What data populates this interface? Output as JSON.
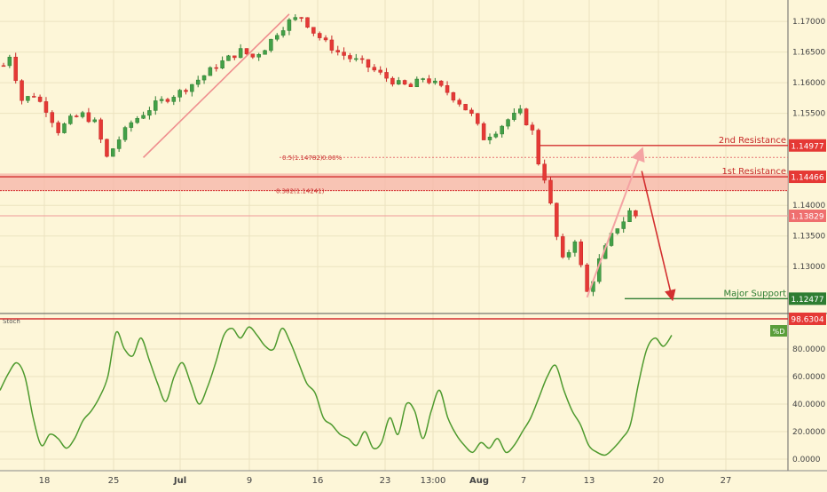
{
  "chart_data": [
    {
      "type": "candlestick",
      "title": "",
      "xlabel": "",
      "ylabel": "",
      "ylim": [
        1.1225,
        1.1735
      ],
      "grid": true,
      "x_ticks": [
        "18",
        "25",
        "Jul",
        "9",
        "16",
        "23",
        "13:00",
        "Aug",
        "7",
        "13",
        "20",
        "27"
      ],
      "y_ticks": [
        "1.17000",
        "1.16500",
        "1.16000",
        "1.15500",
        "1.14000",
        "1.13500",
        "1.13000"
      ],
      "price_anchors": [
        [
          0,
          1.1628
        ],
        [
          1,
          1.1645
        ],
        [
          3,
          1.1572
        ],
        [
          5,
          1.158
        ],
        [
          7,
          1.1557
        ],
        [
          9,
          1.1522
        ],
        [
          11,
          1.154
        ],
        [
          13,
          1.1548
        ],
        [
          15,
          1.1535
        ],
        [
          17,
          1.1478
        ],
        [
          19,
          1.1508
        ],
        [
          21,
          1.1535
        ],
        [
          23,
          1.155
        ],
        [
          25,
          1.1565
        ],
        [
          27,
          1.1575
        ],
        [
          29,
          1.1585
        ],
        [
          31,
          1.1598
        ],
        [
          33,
          1.1612
        ],
        [
          35,
          1.1628
        ],
        [
          37,
          1.164
        ],
        [
          39,
          1.1652
        ],
        [
          41,
          1.1642
        ],
        [
          43,
          1.1657
        ],
        [
          45,
          1.1682
        ],
        [
          47,
          1.17
        ],
        [
          49,
          1.1708
        ],
        [
          51,
          1.1683
        ],
        [
          53,
          1.1665
        ],
        [
          55,
          1.165
        ],
        [
          57,
          1.164
        ],
        [
          59,
          1.1632
        ],
        [
          61,
          1.162
        ],
        [
          63,
          1.1608
        ],
        [
          65,
          1.1598
        ],
        [
          67,
          1.1593
        ],
        [
          69,
          1.1608
        ],
        [
          71,
          1.1598
        ],
        [
          73,
          1.1585
        ],
        [
          75,
          1.1568
        ],
        [
          77,
          1.1547
        ],
        [
          79,
          1.151
        ],
        [
          81,
          1.1522
        ],
        [
          83,
          1.154
        ],
        [
          85,
          1.1552
        ],
        [
          87,
          1.152
        ],
        [
          88,
          1.147
        ],
        [
          89,
          1.1445
        ],
        [
          90,
          1.14
        ],
        [
          91,
          1.1348
        ],
        [
          92,
          1.131
        ],
        [
          93,
          1.1325
        ],
        [
          94,
          1.1345
        ],
        [
          95,
          1.13
        ],
        [
          96,
          1.1258
        ],
        [
          97,
          1.128
        ],
        [
          98,
          1.131
        ],
        [
          99,
          1.133
        ],
        [
          100,
          1.135
        ],
        [
          101,
          1.1365
        ],
        [
          102,
          1.1375
        ],
        [
          103,
          1.139
        ],
        [
          104,
          1.1383
        ]
      ],
      "levels": [
        {
          "name": "2nd Resistance",
          "value": 1.14977,
          "color": "#e53935"
        },
        {
          "name": "1st Resistance",
          "value": 1.14466,
          "color": "#e53935"
        },
        {
          "name": "Major Support",
          "value": 1.12477,
          "color": "#2e7d32"
        }
      ],
      "resistance_zone": [
        1.14241,
        1.1452
      ],
      "fib_levels": [
        {
          "label": "0.5(1.14782)",
          "value": 1.14782
        },
        {
          "label": "0.382(1.14241)",
          "value": 1.14241
        }
      ],
      "fib_extra_label": "0.00%",
      "current_price": 1.13829,
      "price_tags": [
        "1.14977",
        "1.14466",
        "1.13829",
        "1.12477"
      ],
      "annotations": {
        "uptrend_start": [
          23,
          1.1478
        ],
        "uptrend_end": [
          47,
          1.1712
        ],
        "rally_start": [
          96,
          1.125
        ],
        "rally_end": [
          105,
          1.149
        ],
        "drop_start": [
          105,
          1.1456
        ],
        "drop_end": [
          110,
          1.1248
        ]
      }
    },
    {
      "type": "line",
      "title": "Stoch",
      "ylim": [
        0,
        100
      ],
      "y_ticks": [
        "80.0000",
        "60.0000",
        "40.0000",
        "20.0000",
        "0.0000"
      ],
      "overbought": "98.6304",
      "series": [
        {
          "name": "%D",
          "color": "#4e9a2e",
          "values": [
            50,
            62,
            70,
            60,
            30,
            10,
            18,
            15,
            8,
            15,
            28,
            35,
            45,
            60,
            92,
            80,
            75,
            88,
            72,
            55,
            42,
            60,
            70,
            55,
            40,
            52,
            70,
            90,
            95,
            88,
            96,
            90,
            82,
            80,
            95,
            85,
            70,
            55,
            48,
            30,
            25,
            18,
            15,
            10,
            20,
            8,
            12,
            30,
            18,
            40,
            35,
            15,
            35,
            50,
            30,
            18,
            10,
            5,
            12,
            8,
            15,
            5,
            10,
            20,
            30,
            45,
            60,
            68,
            50,
            35,
            25,
            10,
            5,
            3,
            8,
            15,
            25,
            55,
            80,
            88,
            82,
            90
          ]
        }
      ]
    }
  ],
  "x_axis": {
    "ticks": [
      "18",
      "25",
      "Jul",
      "9",
      "16",
      "23",
      "13:00",
      "Aug",
      "7",
      "13",
      "20",
      "27"
    ]
  }
}
